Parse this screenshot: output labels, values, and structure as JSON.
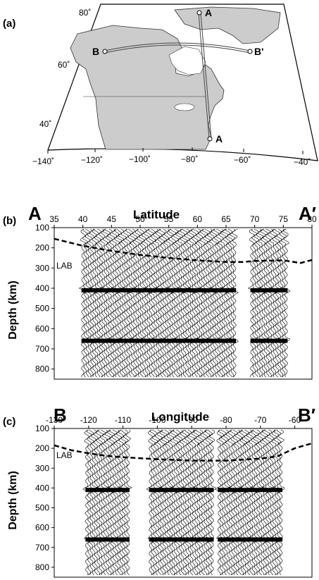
{
  "figure": {
    "panel_a": {
      "label": "(a)",
      "lat_labels": [
        "80˚",
        "60˚",
        "40˚"
      ],
      "lon_labels": [
        "−140˚",
        "−120˚",
        "−100˚",
        "−80˚",
        "−60˚",
        "−40˚"
      ],
      "profile_points": [
        "A",
        "A",
        "B",
        "B'"
      ]
    },
    "panel_b": {
      "label": "(b)",
      "start_label": "A",
      "end_label": "A′",
      "xlabel": "Latitude",
      "ylabel": "Depth (km)",
      "lab_label": "LAB"
    },
    "panel_c": {
      "label": "(c)",
      "start_label": "B",
      "end_label": "B′",
      "xlabel": "Longitude",
      "ylabel": "Depth (km)",
      "lab_label": "LAB"
    }
  },
  "chart_data": [
    {
      "type": "wiggle-section",
      "panel": "b",
      "xlabel": "Latitude",
      "ylabel": "Depth (km)",
      "x_ticks": [
        35,
        40,
        45,
        50,
        55,
        60,
        65,
        70,
        75,
        80
      ],
      "y_ticks": [
        100,
        200,
        300,
        400,
        500,
        600,
        700,
        800
      ],
      "xlim": [
        35,
        80
      ],
      "ylim": [
        850,
        100
      ],
      "data_segments": [
        [
          40,
          66.5
        ],
        [
          69.5,
          75.5
        ]
      ],
      "bright_interfaces_depth": [
        410,
        660
      ],
      "lab_curve": {
        "x": [
          35,
          40,
          45,
          50,
          55,
          60,
          65,
          68,
          70,
          75,
          78,
          80
        ],
        "y": [
          155,
          190,
          215,
          235,
          250,
          262,
          270,
          270,
          265,
          262,
          275,
          260
        ]
      }
    },
    {
      "type": "wiggle-section",
      "panel": "c",
      "xlabel": "Longitude",
      "ylabel": "Depth (km)",
      "x_ticks": [
        -130,
        -120,
        -110,
        -100,
        -90,
        -80,
        -70,
        -60
      ],
      "y_ticks": [
        100,
        200,
        300,
        400,
        500,
        600,
        700,
        800
      ],
      "xlim": [
        -130,
        -55
      ],
      "ylim": [
        850,
        100
      ],
      "data_segments": [
        [
          -120.5,
          -108.5
        ],
        [
          -102,
          -84
        ],
        [
          -82,
          -64
        ]
      ],
      "bright_interfaces_depth": [
        410,
        660
      ],
      "lab_curve": {
        "x": [
          -130,
          -125,
          -120,
          -115,
          -110,
          -100,
          -90,
          -80,
          -70,
          -65,
          -60,
          -55
        ],
        "y": [
          185,
          210,
          225,
          238,
          245,
          255,
          262,
          262,
          252,
          240,
          200,
          175
        ]
      }
    }
  ]
}
